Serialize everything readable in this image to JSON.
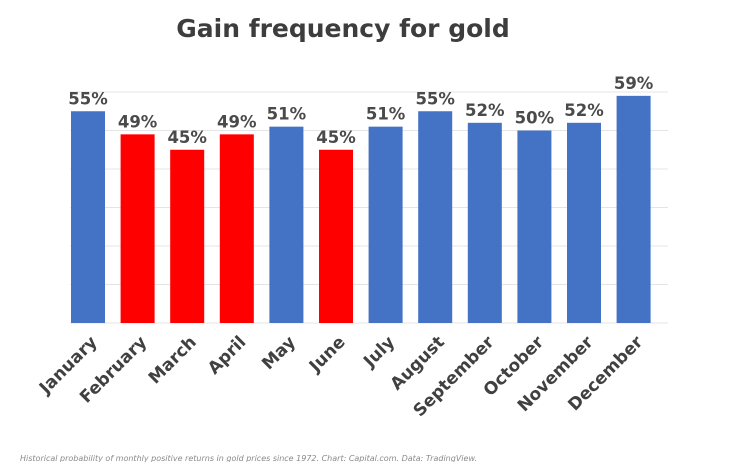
{
  "chart_data": {
    "type": "bar",
    "title": "Gain frequency for gold",
    "categories": [
      "January",
      "February",
      "March",
      "April",
      "May",
      "June",
      "July",
      "August",
      "September",
      "October",
      "November",
      "December"
    ],
    "values": [
      55,
      49,
      45,
      49,
      51,
      45,
      51,
      55,
      52,
      50,
      52,
      59
    ],
    "value_labels": [
      "55%",
      "49%",
      "45%",
      "49%",
      "51%",
      "45%",
      "51%",
      "55%",
      "52%",
      "50%",
      "52%",
      "59%"
    ],
    "bar_colors": [
      "#4472c4",
      "#ff0000",
      "#ff0000",
      "#ff0000",
      "#4472c4",
      "#ff0000",
      "#4472c4",
      "#4472c4",
      "#4472c4",
      "#4472c4",
      "#4472c4",
      "#4472c4"
    ],
    "xlabel": "",
    "ylabel": "",
    "ylim": [
      0,
      60
    ],
    "grid": true,
    "legend": "none",
    "colors": {
      "up": "#4472c4",
      "down": "#ff0000"
    }
  },
  "footer_text": "Historical probability of monthly positive returns in gold prices since 1972. Chart: Capital.com. Data: TradingView."
}
